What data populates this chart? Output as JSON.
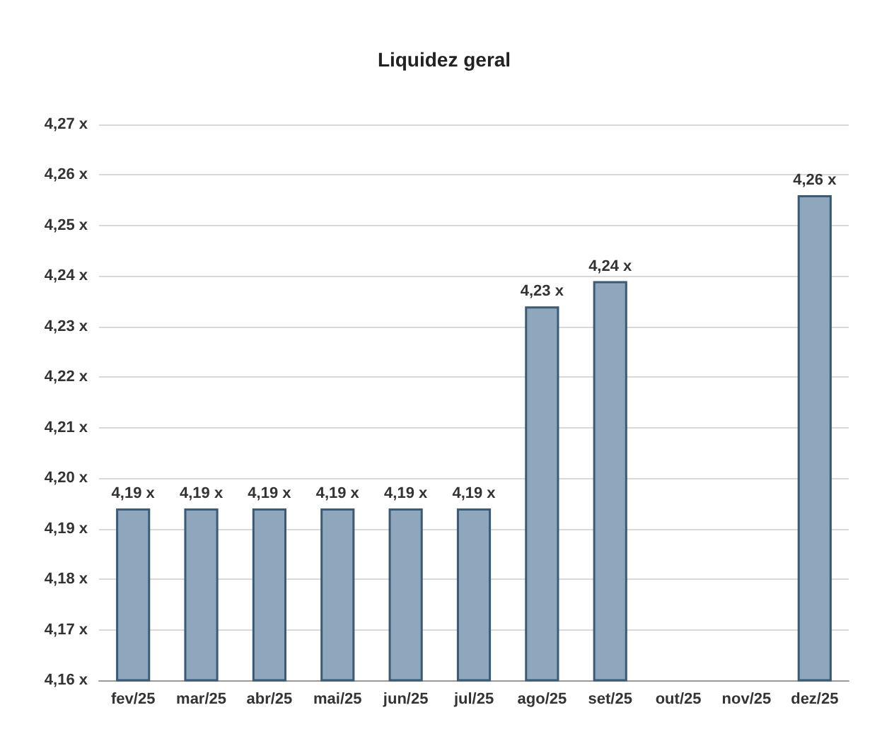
{
  "chart_data": {
    "type": "bar",
    "title": "Liquidez geral",
    "categories": [
      "fev/25",
      "mar/25",
      "abr/25",
      "mai/25",
      "jun/25",
      "jul/25",
      "ago/25",
      "set/25",
      "out/25",
      "nov/25",
      "dez/25"
    ],
    "values": [
      4.194,
      4.194,
      4.194,
      4.194,
      4.194,
      4.194,
      4.234,
      4.239,
      null,
      null,
      4.256
    ],
    "value_labels": [
      "4,19 x",
      "4,19 x",
      "4,19 x",
      "4,19 x",
      "4,19 x",
      "4,19 x",
      "4,23 x",
      "4,24 x",
      null,
      null,
      "4,26 x"
    ],
    "color": "#8ea7bd",
    "ylim": [
      4.16,
      4.27
    ],
    "yticks": [
      {
        "value": 4.16,
        "label": "4,16 x"
      },
      {
        "value": 4.17,
        "label": "4,17 x"
      },
      {
        "value": 4.18,
        "label": "4,18 x"
      },
      {
        "value": 4.19,
        "label": "4,19 x"
      },
      {
        "value": 4.2,
        "label": "4,20 x"
      },
      {
        "value": 4.21,
        "label": "4,21 x"
      },
      {
        "value": 4.22,
        "label": "4,22 x"
      },
      {
        "value": 4.23,
        "label": "4,23 x"
      },
      {
        "value": 4.24,
        "label": "4,24 x"
      },
      {
        "value": 4.25,
        "label": "4,25 x"
      },
      {
        "value": 4.26,
        "label": "4,26 x"
      },
      {
        "value": 4.27,
        "label": "4,27 x"
      }
    ],
    "grid": "y"
  }
}
